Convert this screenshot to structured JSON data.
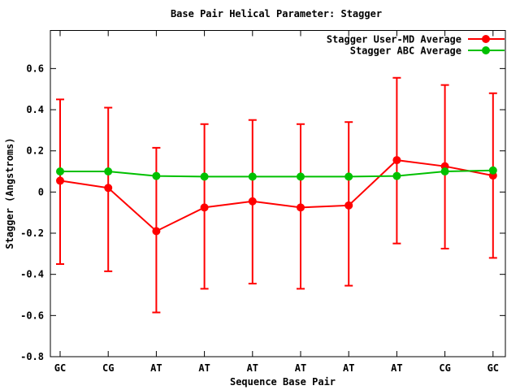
{
  "chart_data": {
    "type": "line",
    "title": "Base Pair Helical Parameter: Stagger",
    "xlabel": "Sequence Base Pair",
    "ylabel": "Stagger (Angstroms)",
    "categories": [
      "GC",
      "CG",
      "AT",
      "AT",
      "AT",
      "AT",
      "AT",
      "AT",
      "CG",
      "GC"
    ],
    "ylim": [
      -0.8,
      0.785
    ],
    "grid": false,
    "legend_position": "top-right-inside",
    "yticks": {
      "values": [
        0.6,
        0.4,
        0.2,
        0,
        -0.2,
        -0.4,
        -0.6,
        -0.8
      ],
      "labels": [
        "0.6",
        "0.4",
        "0.2",
        "0",
        "-0.2",
        "-0.4",
        "-0.6",
        "-0.8"
      ]
    },
    "series": [
      {
        "name": "Stagger User-MD Average",
        "color": "#ff0000",
        "marker": "filled-circle",
        "values": [
          0.055,
          0.02,
          -0.19,
          -0.075,
          -0.045,
          -0.075,
          -0.065,
          0.155,
          0.125,
          0.08
        ],
        "err_low": [
          -0.35,
          -0.385,
          -0.585,
          -0.47,
          -0.445,
          -0.47,
          -0.455,
          -0.25,
          -0.275,
          -0.32
        ],
        "err_high": [
          0.45,
          0.41,
          0.215,
          0.33,
          0.35,
          0.33,
          0.34,
          0.555,
          0.52,
          0.48
        ]
      },
      {
        "name": "Stagger ABC Average",
        "color": "#00c000",
        "marker": "filled-circle",
        "values": [
          0.1,
          0.1,
          0.078,
          0.075,
          0.075,
          0.075,
          0.075,
          0.078,
          0.1,
          0.105
        ]
      }
    ]
  }
}
